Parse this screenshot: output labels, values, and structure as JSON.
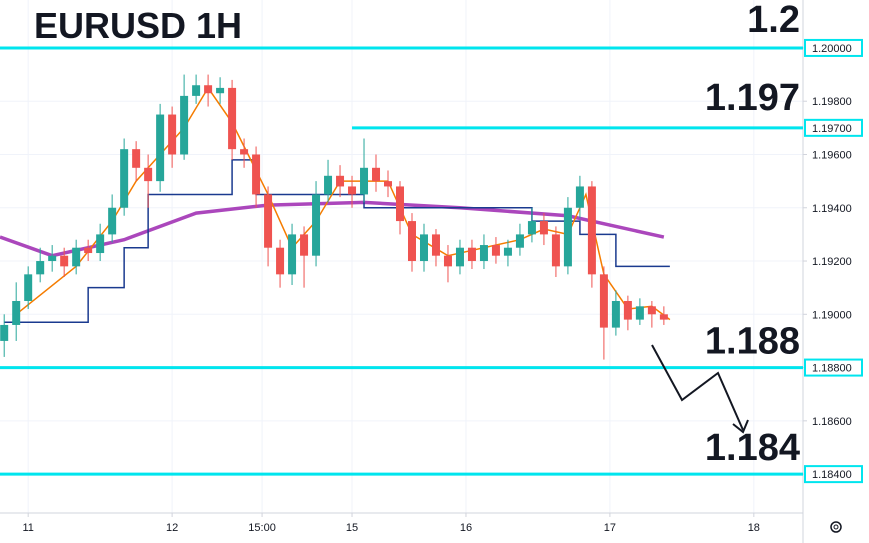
{
  "chart_data": {
    "type": "candlestick",
    "title": "EURUSD 1H",
    "x": [
      -4,
      -2,
      0,
      2,
      4,
      6,
      8,
      10,
      12,
      14,
      16,
      18,
      20,
      22,
      24,
      26,
      28,
      30,
      32,
      34,
      36,
      38,
      40,
      42,
      44,
      46,
      48,
      50,
      52,
      54,
      56,
      58,
      60,
      62,
      64,
      66,
      68,
      70,
      72,
      74,
      76,
      78,
      80,
      82,
      84,
      86,
      88,
      90,
      92,
      94,
      96,
      98,
      100,
      102,
      104,
      106
    ],
    "open": [
      1.189,
      1.1896,
      1.1905,
      1.1915,
      1.192,
      1.1922,
      1.1918,
      1.1925,
      1.1923,
      1.193,
      1.194,
      1.1962,
      1.1955,
      1.195,
      1.1975,
      1.196,
      1.1982,
      1.1986,
      1.1983,
      1.1985,
      1.1962,
      1.196,
      1.1945,
      1.1925,
      1.1915,
      1.193,
      1.1922,
      1.1945,
      1.1952,
      1.1948,
      1.1945,
      1.1955,
      1.195,
      1.1948,
      1.1935,
      1.192,
      1.193,
      1.1922,
      1.1918,
      1.1925,
      1.192,
      1.1926,
      1.1922,
      1.1925,
      1.193,
      1.1935,
      1.193,
      1.1918,
      1.194,
      1.1948,
      1.1915,
      1.1895,
      1.1905,
      1.1898,
      1.1903,
      1.19
    ],
    "high": [
      1.19,
      1.1912,
      1.1918,
      1.1925,
      1.1926,
      1.1925,
      1.1928,
      1.1928,
      1.1934,
      1.1945,
      1.1966,
      1.1965,
      1.196,
      1.1979,
      1.1978,
      1.199,
      1.199,
      1.199,
      1.1989,
      1.1988,
      1.1966,
      1.1963,
      1.1948,
      1.1928,
      1.1934,
      1.1933,
      1.195,
      1.1958,
      1.1956,
      1.1952,
      1.1966,
      1.196,
      1.1954,
      1.195,
      1.1938,
      1.1934,
      1.1932,
      1.1926,
      1.1928,
      1.1928,
      1.193,
      1.1929,
      1.1928,
      1.1934,
      1.194,
      1.1938,
      1.1933,
      1.1944,
      1.1952,
      1.195,
      1.1918,
      1.1909,
      1.1907,
      1.1906,
      1.1905,
      1.1903
    ],
    "low": [
      1.1884,
      1.189,
      1.1902,
      1.1912,
      1.1916,
      1.1914,
      1.1915,
      1.192,
      1.192,
      1.1927,
      1.1937,
      1.195,
      1.194,
      1.1946,
      1.1955,
      1.1958,
      1.1979,
      1.1978,
      1.1979,
      1.1958,
      1.1955,
      1.194,
      1.1918,
      1.191,
      1.1911,
      1.191,
      1.1918,
      1.1942,
      1.1944,
      1.194,
      1.1942,
      1.1946,
      1.1944,
      1.193,
      1.1916,
      1.1916,
      1.1918,
      1.1912,
      1.1915,
      1.1917,
      1.1917,
      1.1919,
      1.1918,
      1.1922,
      1.1927,
      1.1926,
      1.1914,
      1.1915,
      1.1936,
      1.191,
      1.1883,
      1.1892,
      1.1894,
      1.1896,
      1.1895,
      1.1896
    ],
    "close": [
      1.1896,
      1.1905,
      1.1915,
      1.192,
      1.1922,
      1.1918,
      1.1925,
      1.1923,
      1.193,
      1.194,
      1.1962,
      1.1955,
      1.195,
      1.1975,
      1.196,
      1.1982,
      1.1986,
      1.1983,
      1.1985,
      1.1962,
      1.196,
      1.1945,
      1.1925,
      1.1915,
      1.193,
      1.1922,
      1.1945,
      1.1952,
      1.1948,
      1.1945,
      1.1955,
      1.195,
      1.1948,
      1.1935,
      1.192,
      1.193,
      1.1922,
      1.1918,
      1.1925,
      1.192,
      1.1926,
      1.1922,
      1.1925,
      1.193,
      1.1935,
      1.193,
      1.1918,
      1.194,
      1.1948,
      1.1915,
      1.1895,
      1.1905,
      1.1898,
      1.1903,
      1.19,
      1.1898
    ],
    "up_color": "#26a69a",
    "down_color": "#ef5350",
    "lines": [
      {
        "color": "#ab47bc",
        "x": [
          -4.7,
          4,
          16,
          28,
          40,
          56,
          72,
          90,
          106
        ],
        "values": [
          1.1929,
          1.1922,
          1.1928,
          1.1938,
          1.1941,
          1.1942,
          1.194,
          1.1937,
          1.1929
        ]
      },
      {
        "color": "#1a3a8f",
        "x": [
          -4,
          10,
          10,
          16,
          16,
          20,
          20,
          34,
          34,
          38,
          38,
          56,
          56,
          84,
          84,
          92,
          92,
          98,
          98,
          107
        ],
        "values": [
          1.1897,
          1.1897,
          1.191,
          1.191,
          1.1925,
          1.1925,
          1.1945,
          1.1945,
          1.1958,
          1.1958,
          1.1945,
          1.1945,
          1.194,
          1.194,
          1.1935,
          1.1935,
          1.193,
          1.193,
          1.1918,
          1.1918
        ]
      },
      {
        "color": "#f57c00",
        "x": [
          -2,
          8,
          14,
          18,
          26,
          30,
          34,
          36,
          40,
          44,
          48,
          52,
          60,
          64,
          70,
          82,
          86,
          90,
          93,
          96,
          100,
          104,
          107
        ],
        "values": [
          1.19,
          1.1918,
          1.1935,
          1.195,
          1.197,
          1.1985,
          1.1972,
          1.1963,
          1.1945,
          1.1925,
          1.1935,
          1.195,
          1.195,
          1.193,
          1.1922,
          1.1928,
          1.1932,
          1.193,
          1.1945,
          1.1915,
          1.1902,
          1.1903,
          1.1898
        ]
      }
    ],
    "levels": [
      1.2,
      1.197,
      1.188,
      1.184
    ],
    "level_starts": [
      -4.7,
      54,
      -4.7,
      -4.7
    ],
    "level_tags": [
      "1.20000",
      "1.19700",
      "1.18800",
      "1.18400"
    ],
    "level_color": "#00e5ee",
    "xlim": [
      -4.7,
      129.2
    ],
    "ylim": [
      1.18254,
      1.2018
    ],
    "xticks": [
      {
        "value": 0,
        "label": "11"
      },
      {
        "value": 24,
        "label": "12"
      },
      {
        "value": 39,
        "label": "15:00"
      },
      {
        "value": 54,
        "label": "15"
      },
      {
        "value": 73,
        "label": "16"
      },
      {
        "value": 97,
        "label": "17"
      },
      {
        "value": 121,
        "label": "18"
      }
    ],
    "yticks": [
      {
        "value": 1.184,
        "label": "1.18400"
      },
      {
        "value": 1.186,
        "label": "1.18600"
      },
      {
        "value": 1.188,
        "label": "1.18800"
      },
      {
        "value": 1.19,
        "label": "1.19000"
      },
      {
        "value": 1.192,
        "label": "1.19200"
      },
      {
        "value": 1.194,
        "label": "1.19400"
      },
      {
        "value": 1.196,
        "label": "1.19600"
      },
      {
        "value": 1.198,
        "label": "1.19800"
      },
      {
        "value": 1.2,
        "label": "1.20000"
      }
    ],
    "grid": true
  }
}
